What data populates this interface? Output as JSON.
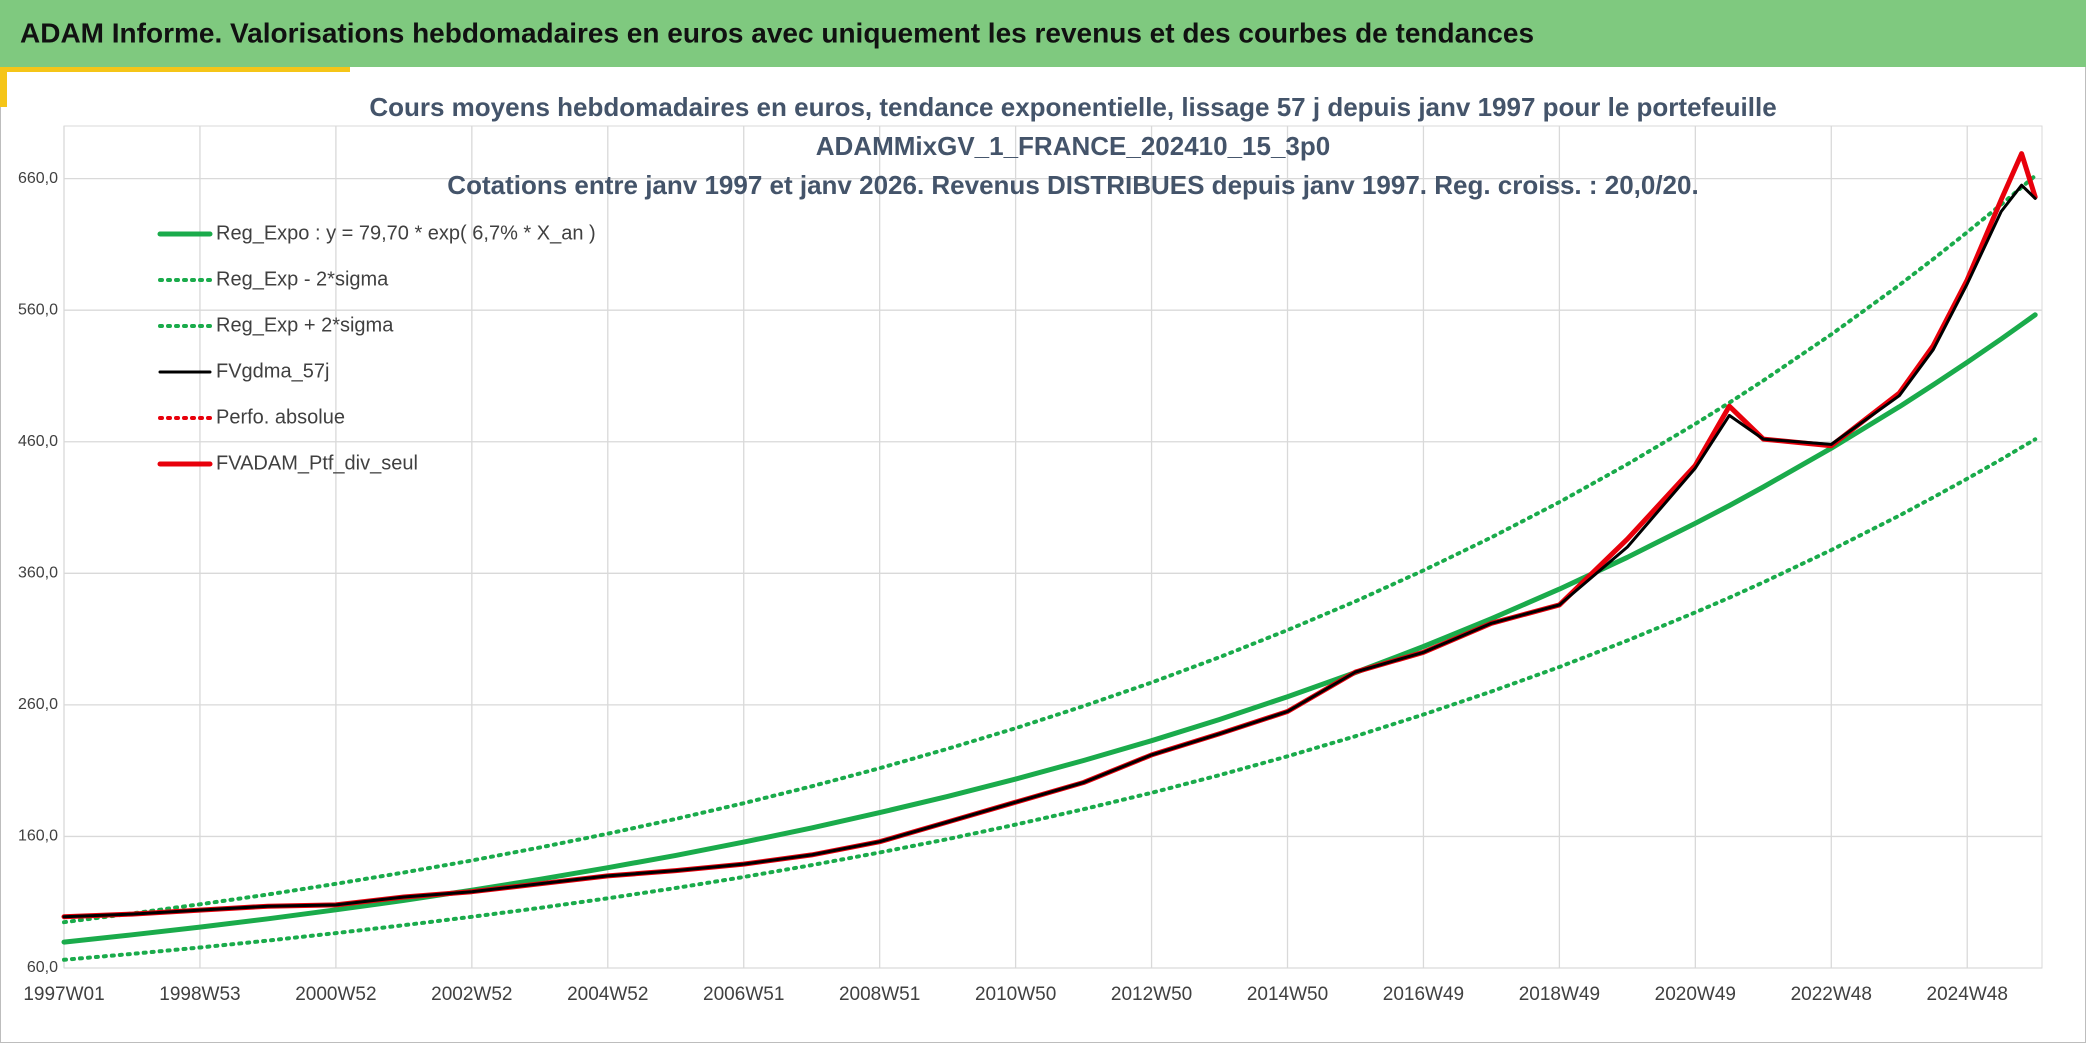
{
  "header": {
    "title": "ADAM Informe. Valorisations hebdomadaires en euros avec uniquement les revenus et des courbes de tendances"
  },
  "chart_data": {
    "type": "line",
    "title": [
      "Cours moyens hebdomadaires en euros, tendance exponentielle, lissage 57 j depuis janv 1997 pour le portefeuille",
      "ADAMMixGV_1_FRANCE_202410_15_3p0",
      "Cotations entre janv 1997 et janv 2026. Revenus DISTRIBUES depuis janv 1997. Reg. croiss. : 20,0/20."
    ],
    "x": [
      1997,
      1998,
      1999,
      2000,
      2001,
      2002,
      2003,
      2004,
      2005,
      2006,
      2007,
      2008,
      2009,
      2010,
      2011,
      2012,
      2013,
      2014,
      2015,
      2016,
      2017,
      2018,
      2019,
      2020,
      2021,
      2021.5,
      2022,
      2023,
      2024,
      2024.5,
      2025,
      2025.5,
      2025.8,
      2026
    ],
    "xlim": [
      1997,
      2026.1
    ],
    "xticks": [
      {
        "value": 1997,
        "label": "1997W01"
      },
      {
        "value": 1999,
        "label": "1998W53"
      },
      {
        "value": 2001,
        "label": "2000W52"
      },
      {
        "value": 2003,
        "label": "2002W52"
      },
      {
        "value": 2005,
        "label": "2004W52"
      },
      {
        "value": 2007,
        "label": "2006W51"
      },
      {
        "value": 2009,
        "label": "2008W51"
      },
      {
        "value": 2011,
        "label": "2010W50"
      },
      {
        "value": 2013,
        "label": "2012W50"
      },
      {
        "value": 2015,
        "label": "2014W50"
      },
      {
        "value": 2017,
        "label": "2016W49"
      },
      {
        "value": 2019,
        "label": "2018W49"
      },
      {
        "value": 2021,
        "label": "2020W49"
      },
      {
        "value": 2023,
        "label": "2022W48"
      },
      {
        "value": 2025,
        "label": "2024W48"
      }
    ],
    "ylim": [
      60,
      700
    ],
    "yticks": [
      {
        "value": 60,
        "label": "60,0"
      },
      {
        "value": 160,
        "label": "160,0"
      },
      {
        "value": 260,
        "label": "260,0"
      },
      {
        "value": 360,
        "label": "360,0"
      },
      {
        "value": 460,
        "label": "460,0"
      },
      {
        "value": 560,
        "label": "560,0"
      },
      {
        "value": 660,
        "label": "660,0"
      }
    ],
    "grid": true,
    "legend": "upper left",
    "series": [
      {
        "name": "Reg_Expo : y = 79,70 * exp( 6,7% *  X_an )",
        "color": "#1aab4b",
        "dash": "solid",
        "values": [
          79.7,
          85.2,
          91.1,
          97.4,
          104.2,
          111.4,
          119.1,
          127.4,
          136.2,
          145.6,
          155.7,
          166.5,
          178.1,
          190.4,
          203.6,
          217.7,
          232.8,
          248.9,
          266.2,
          284.6,
          304.4,
          325.5,
          348.0,
          372.2,
          398.0,
          411.5,
          425.6,
          455.1,
          486.6,
          503.2,
          520.4,
          538.1,
          549.1,
          556.5
        ]
      },
      {
        "name": "Reg_Exp - 2*sigma",
        "color": "#1aab4b",
        "dash": "dotted",
        "values": [
          66.2,
          70.7,
          75.6,
          80.8,
          86.5,
          92.5,
          98.9,
          105.7,
          113.0,
          120.8,
          129.2,
          138.2,
          147.8,
          158.0,
          169.0,
          180.7,
          193.2,
          206.6,
          220.9,
          236.2,
          252.7,
          270.2,
          288.8,
          308.9,
          330.3,
          341.5,
          353.2,
          377.7,
          403.9,
          417.7,
          431.9,
          446.6,
          455.8,
          461.9
        ]
      },
      {
        "name": "Reg_Exp + 2*sigma",
        "color": "#1aab4b",
        "dash": "dotted",
        "values": [
          94.8,
          101.4,
          108.4,
          115.9,
          124.0,
          132.6,
          141.7,
          151.6,
          162.1,
          173.3,
          185.3,
          198.1,
          211.9,
          226.6,
          242.3,
          259.1,
          277.0,
          296.2,
          316.8,
          338.7,
          362.2,
          387.3,
          414.1,
          442.9,
          473.6,
          489.7,
          506.5,
          541.6,
          579.1,
          598.8,
          619.3,
          640.3,
          653.4,
          662.2
        ]
      },
      {
        "name": "FVgdma_57j",
        "color": "#000000",
        "dash": "solid",
        "values": [
          99,
          101,
          104,
          107,
          108,
          114,
          118,
          124,
          130,
          134,
          139,
          146,
          156,
          171,
          186,
          201,
          222,
          238,
          255,
          285,
          300,
          322,
          336,
          380,
          440,
          480,
          462,
          458,
          495,
          530,
          580,
          635,
          655,
          645
        ]
      },
      {
        "name": "Perfo. absolue",
        "color": "#e8000b",
        "dash": "dotted",
        "values": [
          99,
          101,
          104,
          107,
          108,
          114,
          118,
          124,
          130,
          134,
          139,
          146,
          156,
          171,
          186,
          201,
          222,
          238,
          255,
          285,
          300,
          322,
          336,
          386,
          442,
          487,
          462,
          457,
          497,
          533,
          583,
          644,
          679,
          646
        ]
      },
      {
        "name": "FVADAM_Ptf_div_seul",
        "color": "#e8000b",
        "dash": "solid",
        "values": [
          99,
          101,
          104,
          107,
          108,
          114,
          118,
          124,
          130,
          134,
          139,
          146,
          156,
          171,
          186,
          201,
          222,
          238,
          255,
          285,
          300,
          322,
          336,
          386,
          442,
          487,
          462,
          457,
          497,
          533,
          583,
          644,
          679,
          646
        ]
      }
    ]
  }
}
